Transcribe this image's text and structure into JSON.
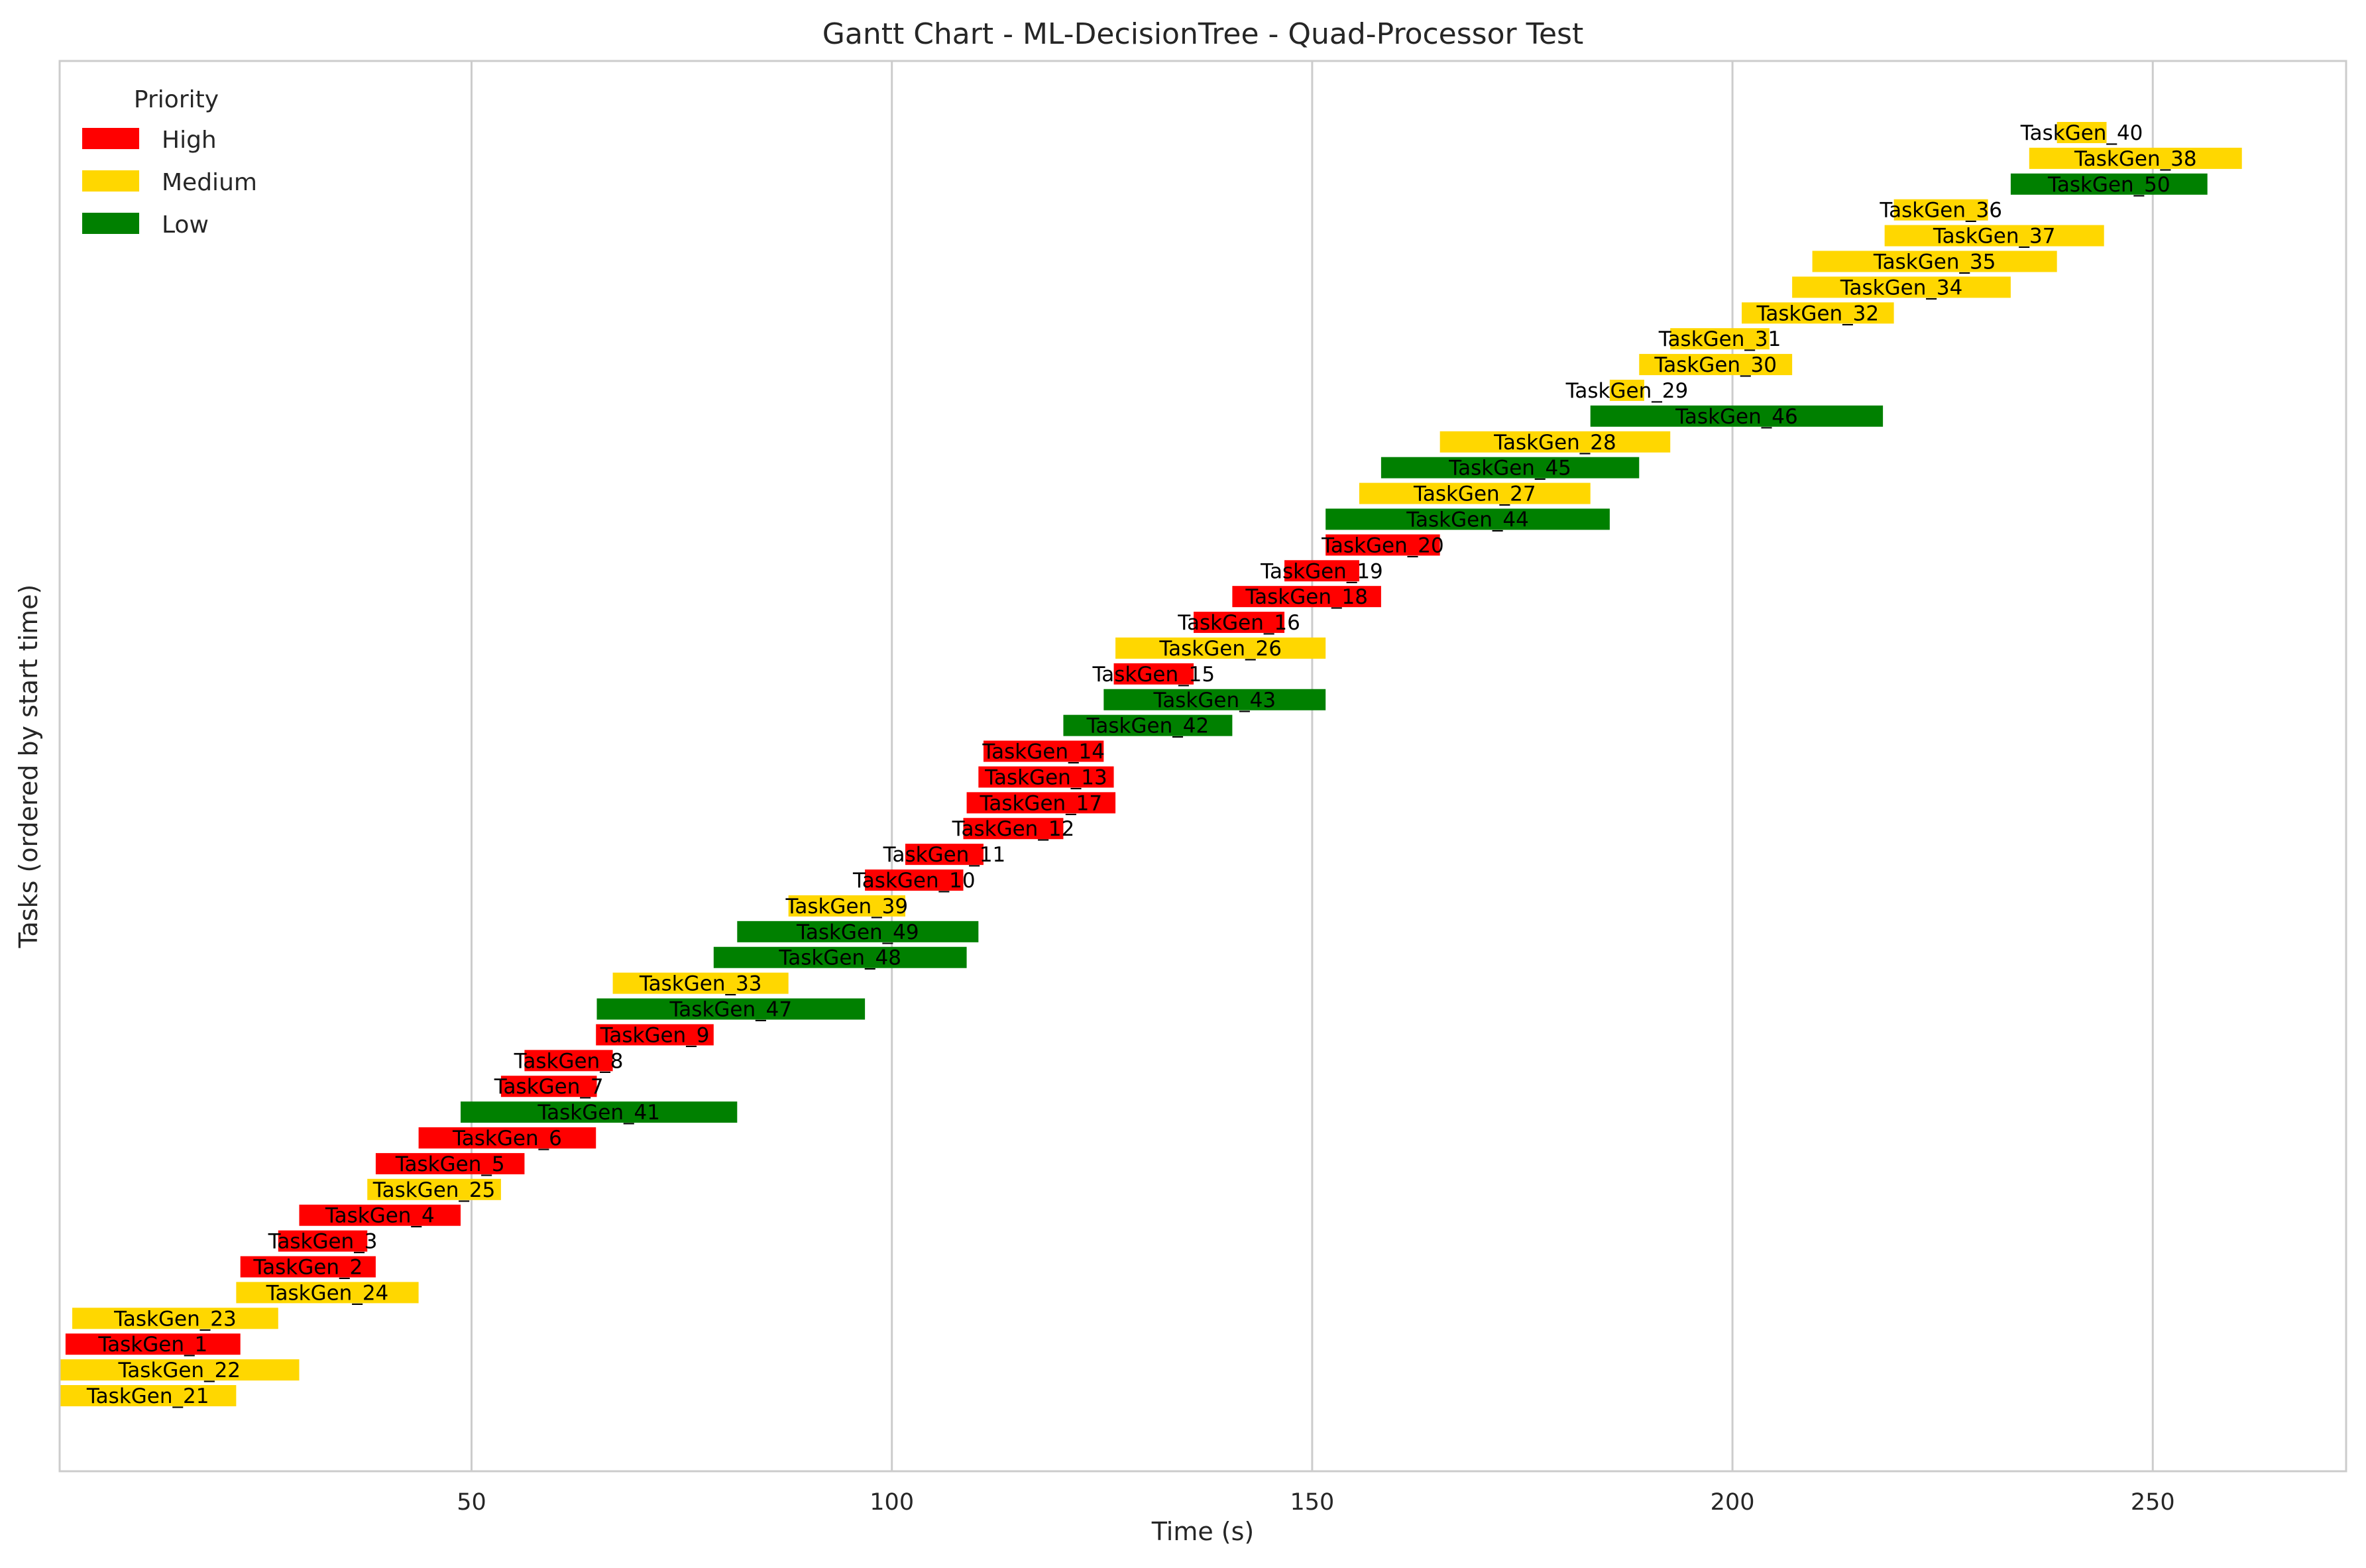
{
  "chart_data": {
    "type": "gantt",
    "title": "Gantt Chart - ML-DecisionTree - Quad-Processor Test",
    "xlabel": "Time (s)",
    "ylabel": "Tasks (ordered by start time)",
    "xlim": [
      1,
      273
    ],
    "xticks": [
      50,
      100,
      150,
      200,
      250
    ],
    "grid": "vertical",
    "legend": {
      "title": "Priority",
      "placement": "top-left",
      "entries": [
        {
          "label": "High",
          "color": "#ff0000"
        },
        {
          "label": "Medium",
          "color": "#ffd700"
        },
        {
          "label": "Low",
          "color": "#008000"
        }
      ]
    },
    "tasks": [
      {
        "name": "TaskGen_21",
        "start": 1,
        "end": 22,
        "priority": "Medium"
      },
      {
        "name": "TaskGen_22",
        "start": 1,
        "end": 29.5,
        "priority": "Medium"
      },
      {
        "name": "TaskGen_1",
        "start": 1.7,
        "end": 22.5,
        "priority": "High"
      },
      {
        "name": "TaskGen_23",
        "start": 2.5,
        "end": 27,
        "priority": "Medium"
      },
      {
        "name": "TaskGen_24",
        "start": 22,
        "end": 43.7,
        "priority": "Medium"
      },
      {
        "name": "TaskGen_2",
        "start": 22.5,
        "end": 38.6,
        "priority": "High"
      },
      {
        "name": "TaskGen_3",
        "start": 27,
        "end": 37.6,
        "priority": "High"
      },
      {
        "name": "TaskGen_4",
        "start": 29.5,
        "end": 48.7,
        "priority": "High"
      },
      {
        "name": "TaskGen_25",
        "start": 37.6,
        "end": 53.5,
        "priority": "Medium"
      },
      {
        "name": "TaskGen_5",
        "start": 38.6,
        "end": 56.3,
        "priority": "High"
      },
      {
        "name": "TaskGen_6",
        "start": 43.7,
        "end": 64.8,
        "priority": "High"
      },
      {
        "name": "TaskGen_41",
        "start": 48.7,
        "end": 81.6,
        "priority": "Low"
      },
      {
        "name": "TaskGen_7",
        "start": 53.5,
        "end": 64.9,
        "priority": "High"
      },
      {
        "name": "TaskGen_8",
        "start": 56.3,
        "end": 66.8,
        "priority": "High"
      },
      {
        "name": "TaskGen_9",
        "start": 64.8,
        "end": 78.8,
        "priority": "High"
      },
      {
        "name": "TaskGen_47",
        "start": 64.9,
        "end": 96.8,
        "priority": "Low"
      },
      {
        "name": "TaskGen_33",
        "start": 66.8,
        "end": 87.7,
        "priority": "Medium"
      },
      {
        "name": "TaskGen_48",
        "start": 78.8,
        "end": 108.9,
        "priority": "Low"
      },
      {
        "name": "TaskGen_49",
        "start": 81.6,
        "end": 110.3,
        "priority": "Low"
      },
      {
        "name": "TaskGen_39",
        "start": 87.7,
        "end": 101.6,
        "priority": "Medium"
      },
      {
        "name": "TaskGen_10",
        "start": 96.8,
        "end": 108.5,
        "priority": "High"
      },
      {
        "name": "TaskGen_11",
        "start": 101.6,
        "end": 110.9,
        "priority": "High"
      },
      {
        "name": "TaskGen_12",
        "start": 108.5,
        "end": 120.4,
        "priority": "High"
      },
      {
        "name": "TaskGen_17",
        "start": 108.9,
        "end": 126.6,
        "priority": "High"
      },
      {
        "name": "TaskGen_13",
        "start": 110.3,
        "end": 126.4,
        "priority": "High"
      },
      {
        "name": "TaskGen_14",
        "start": 110.9,
        "end": 125.2,
        "priority": "High"
      },
      {
        "name": "TaskGen_42",
        "start": 120.4,
        "end": 140.5,
        "priority": "Low"
      },
      {
        "name": "TaskGen_43",
        "start": 125.2,
        "end": 151.6,
        "priority": "Low"
      },
      {
        "name": "TaskGen_15",
        "start": 126.4,
        "end": 135.9,
        "priority": "High"
      },
      {
        "name": "TaskGen_26",
        "start": 126.6,
        "end": 151.6,
        "priority": "Medium"
      },
      {
        "name": "TaskGen_16",
        "start": 135.9,
        "end": 146.7,
        "priority": "High"
      },
      {
        "name": "TaskGen_18",
        "start": 140.5,
        "end": 158.2,
        "priority": "High"
      },
      {
        "name": "TaskGen_19",
        "start": 146.7,
        "end": 155.6,
        "priority": "High"
      },
      {
        "name": "TaskGen_20",
        "start": 151.6,
        "end": 165.2,
        "priority": "High"
      },
      {
        "name": "TaskGen_44",
        "start": 151.6,
        "end": 185.4,
        "priority": "Low"
      },
      {
        "name": "TaskGen_27",
        "start": 155.6,
        "end": 183.1,
        "priority": "Medium"
      },
      {
        "name": "TaskGen_45",
        "start": 158.2,
        "end": 188.9,
        "priority": "Low"
      },
      {
        "name": "TaskGen_28",
        "start": 165.2,
        "end": 192.6,
        "priority": "Medium"
      },
      {
        "name": "TaskGen_46",
        "start": 183.1,
        "end": 217.9,
        "priority": "Low"
      },
      {
        "name": "TaskGen_29",
        "start": 185.4,
        "end": 189.5,
        "priority": "Medium"
      },
      {
        "name": "TaskGen_30",
        "start": 188.9,
        "end": 207.1,
        "priority": "Medium"
      },
      {
        "name": "TaskGen_31",
        "start": 192.6,
        "end": 204.4,
        "priority": "Medium"
      },
      {
        "name": "TaskGen_32",
        "start": 201.1,
        "end": 219.2,
        "priority": "Medium"
      },
      {
        "name": "TaskGen_34",
        "start": 207.1,
        "end": 233.1,
        "priority": "Medium"
      },
      {
        "name": "TaskGen_35",
        "start": 209.5,
        "end": 238.6,
        "priority": "Medium"
      },
      {
        "name": "TaskGen_37",
        "start": 218.1,
        "end": 244.2,
        "priority": "Medium"
      },
      {
        "name": "TaskGen_36",
        "start": 219.2,
        "end": 230.4,
        "priority": "Medium"
      },
      {
        "name": "TaskGen_50",
        "start": 233.1,
        "end": 256.5,
        "priority": "Low"
      },
      {
        "name": "TaskGen_38",
        "start": 235.3,
        "end": 260.6,
        "priority": "Medium"
      },
      {
        "name": "TaskGen_40",
        "start": 238.6,
        "end": 244.5,
        "priority": "Medium"
      }
    ]
  }
}
